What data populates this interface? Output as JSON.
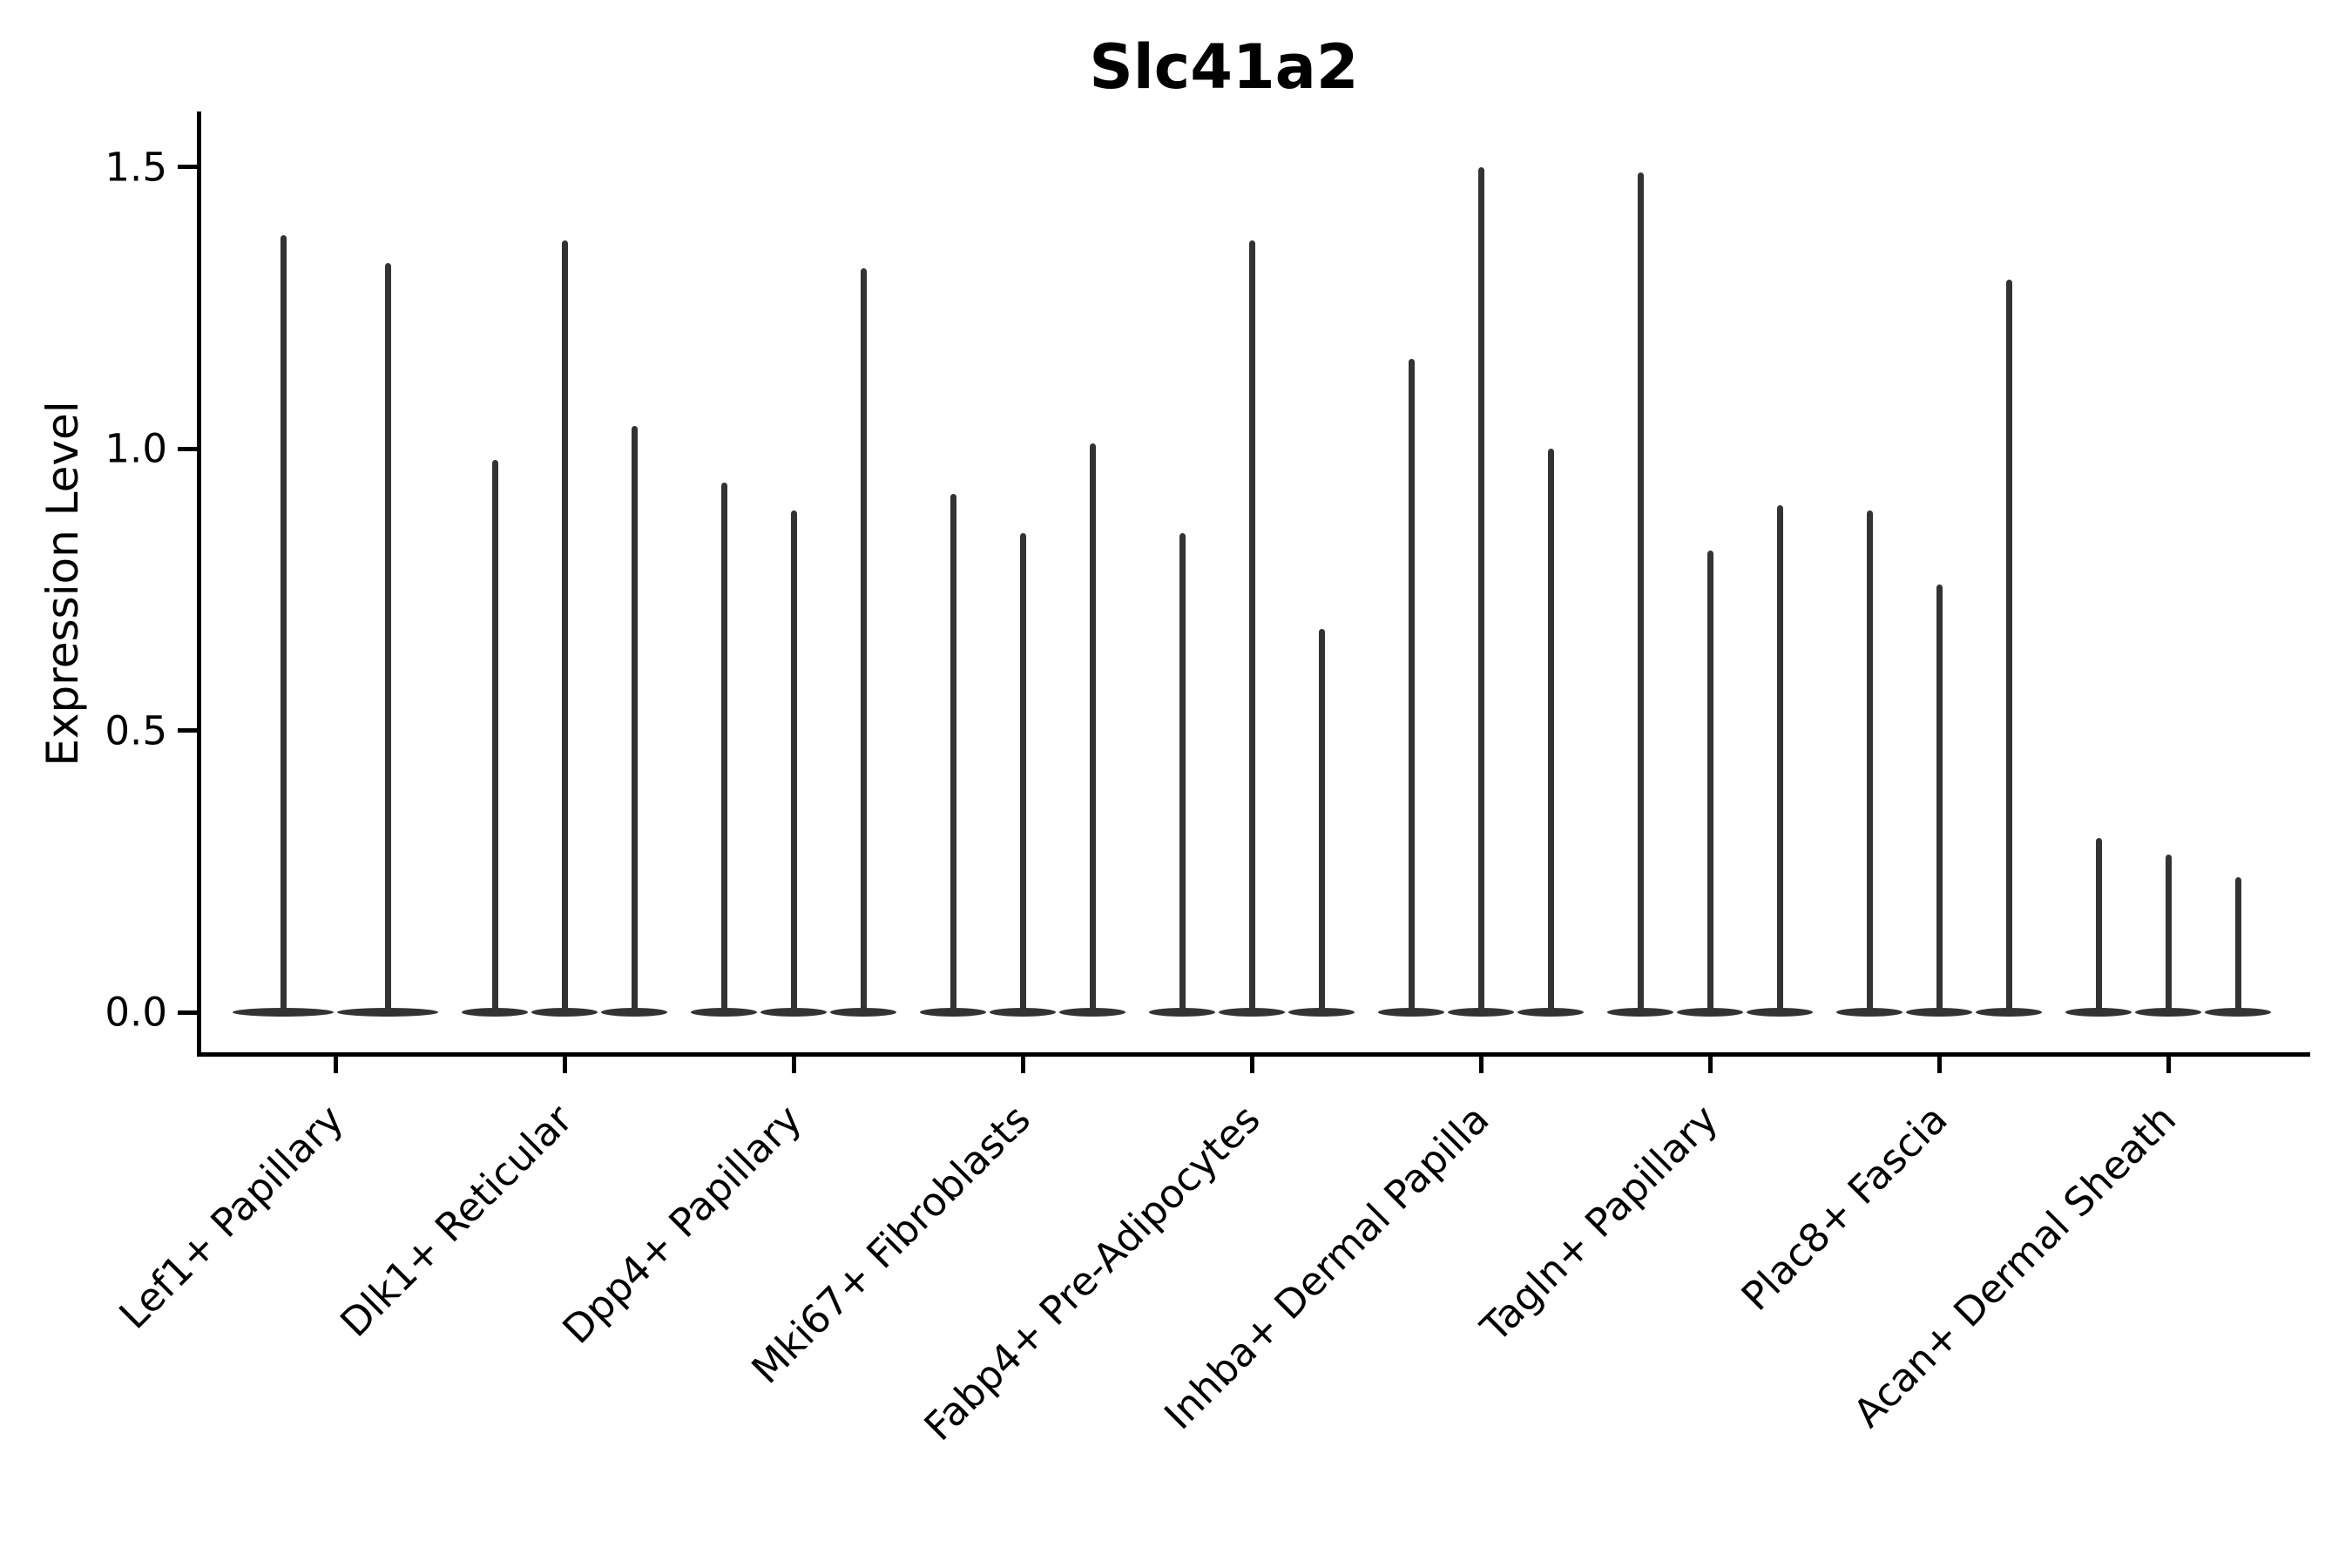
{
  "title": "Slc41a2",
  "ylabel": "Expression Level",
  "chart_data": {
    "type": "violin",
    "title": "Slc41a2",
    "xlabel": "",
    "ylabel": "Expression Level",
    "ylim": [
      0.0,
      1.55
    ],
    "yticks": [
      0.0,
      0.5,
      1.0,
      1.5
    ],
    "ytick_labels": [
      "0.0",
      "0.5",
      "1.0",
      "1.5"
    ],
    "grid": false,
    "legend": "none",
    "violin_color": "#333333",
    "description": "Needle-thin violins: nearly all cells at 0 expression; each violin rendered as a flat base at 0 with a thin spike up to its maximum expression value.",
    "categories": [
      "Lef1+ Papillary",
      "Dlk1+ Reticular",
      "Dpp4+ Papillary",
      "Mki67+ Fibroblasts",
      "Fabp4+ Pre-Adipocytes",
      "Inhba+ Dermal Papilla",
      "Tagln+ Papillary",
      "Plac8+ Fascia",
      "Acan+ Dermal Sheath"
    ],
    "groups": [
      {
        "label": "Lef1+ Papillary",
        "violin_maxima": [
          1.38,
          1.33
        ]
      },
      {
        "label": "Dlk1+ Reticular",
        "violin_maxima": [
          0.98,
          1.37,
          1.04
        ]
      },
      {
        "label": "Dpp4+ Papillary",
        "violin_maxima": [
          0.94,
          0.89,
          1.32
        ]
      },
      {
        "label": "Mki67+ Fibroblasts",
        "violin_maxima": [
          0.92,
          0.85,
          1.01
        ]
      },
      {
        "label": "Fabp4+ Pre-Adipocytes",
        "violin_maxima": [
          0.85,
          1.37,
          0.68
        ]
      },
      {
        "label": "Inhba+ Dermal Papilla",
        "violin_maxima": [
          1.16,
          1.5,
          1.0
        ]
      },
      {
        "label": "Tagln+ Papillary",
        "violin_maxima": [
          1.49,
          0.82,
          0.9
        ]
      },
      {
        "label": "Plac8+ Fascia",
        "violin_maxima": [
          0.89,
          0.76,
          1.3
        ]
      },
      {
        "label": "Acan+ Dermal Sheath",
        "violin_maxima": [
          0.31,
          0.28,
          0.24
        ]
      }
    ]
  }
}
